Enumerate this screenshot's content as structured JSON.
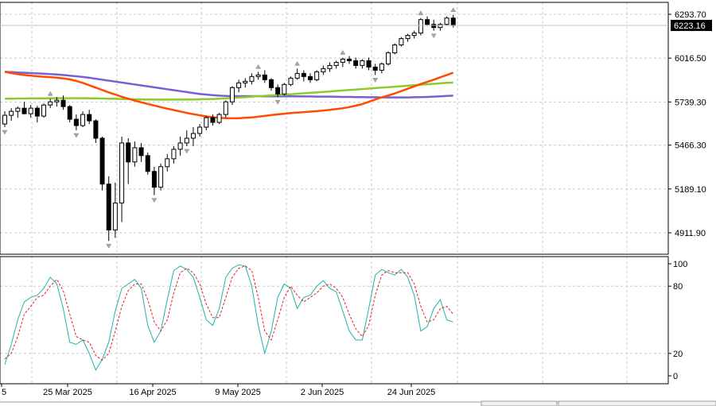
{
  "chart_data": [
    {
      "type": "candlestick",
      "price_scale": {
        "ticks": [
          "6293.70",
          "6016.50",
          "5739.30",
          "5466.30",
          "5189.10",
          "4911.90"
        ],
        "ylim": [
          4830,
          6340
        ]
      },
      "current_price": "6223.16",
      "x_axis": {
        "labels": [
          "5",
          "25 Mar 2025",
          "16 Apr 2025",
          "9 May 2025",
          "2 Jun 2025",
          "24 Jun 2025"
        ]
      },
      "colors": {
        "bull_candle": "#ffffff",
        "bear_candle": "#000000",
        "ma_fast": "#ff4a00",
        "ma_mid": "#8ccc2a",
        "ma_slow": "#7a5fd4",
        "grid": "#c8c8c8",
        "fractal": "#a8a8a8"
      },
      "candles": [
        [
          5600,
          5680,
          5580,
          5655
        ],
        [
          5655,
          5700,
          5620,
          5680
        ],
        [
          5680,
          5710,
          5640,
          5700
        ],
        [
          5700,
          5740,
          5660,
          5665
        ],
        [
          5665,
          5720,
          5640,
          5700
        ],
        [
          5700,
          5715,
          5610,
          5650
        ],
        [
          5650,
          5730,
          5640,
          5720
        ],
        [
          5720,
          5760,
          5700,
          5740
        ],
        [
          5740,
          5770,
          5710,
          5750
        ],
        [
          5750,
          5780,
          5690,
          5710
        ],
        [
          5710,
          5720,
          5610,
          5630
        ],
        [
          5630,
          5660,
          5560,
          5590
        ],
        [
          5590,
          5680,
          5580,
          5660
        ],
        [
          5660,
          5690,
          5600,
          5620
        ],
        [
          5620,
          5630,
          5480,
          5510
        ],
        [
          5510,
          5520,
          5180,
          5220
        ],
        [
          5220,
          5270,
          4860,
          4930
        ],
        [
          4930,
          5230,
          4880,
          5100
        ],
        [
          5100,
          5520,
          4980,
          5480
        ],
        [
          5480,
          5510,
          5220,
          5360
        ],
        [
          5360,
          5490,
          5330,
          5450
        ],
        [
          5450,
          5480,
          5360,
          5400
        ],
        [
          5400,
          5420,
          5280,
          5300
        ],
        [
          5300,
          5330,
          5150,
          5200
        ],
        [
          5200,
          5350,
          5180,
          5330
        ],
        [
          5330,
          5410,
          5300,
          5380
        ],
        [
          5380,
          5460,
          5350,
          5440
        ],
        [
          5440,
          5520,
          5400,
          5480
        ],
        [
          5480,
          5560,
          5460,
          5510
        ],
        [
          5510,
          5580,
          5460,
          5540
        ],
        [
          5540,
          5600,
          5520,
          5580
        ],
        [
          5580,
          5650,
          5560,
          5640
        ],
        [
          5640,
          5660,
          5590,
          5610
        ],
        [
          5610,
          5670,
          5600,
          5660
        ],
        [
          5660,
          5750,
          5640,
          5740
        ],
        [
          5740,
          5840,
          5720,
          5830
        ],
        [
          5830,
          5880,
          5800,
          5860
        ],
        [
          5860,
          5890,
          5830,
          5870
        ],
        [
          5870,
          5920,
          5850,
          5900
        ],
        [
          5900,
          5930,
          5880,
          5910
        ],
        [
          5910,
          5940,
          5860,
          5880
        ],
        [
          5880,
          5890,
          5810,
          5830
        ],
        [
          5830,
          5850,
          5770,
          5790
        ],
        [
          5790,
          5860,
          5780,
          5850
        ],
        [
          5850,
          5900,
          5840,
          5890
        ],
        [
          5890,
          5950,
          5880,
          5920
        ],
        [
          5920,
          5940,
          5870,
          5900
        ],
        [
          5900,
          5920,
          5860,
          5880
        ],
        [
          5880,
          5940,
          5870,
          5930
        ],
        [
          5930,
          5970,
          5910,
          5950
        ],
        [
          5950,
          5990,
          5930,
          5970
        ],
        [
          5970,
          6000,
          5950,
          5990
        ],
        [
          5990,
          6020,
          5960,
          6010
        ],
        [
          6010,
          6030,
          5980,
          6000
        ],
        [
          6000,
          6020,
          5950,
          5970
        ],
        [
          5970,
          6010,
          5950,
          6000
        ],
        [
          6000,
          6020,
          5940,
          5960
        ],
        [
          5960,
          5980,
          5910,
          5940
        ],
        [
          5940,
          5990,
          5920,
          5980
        ],
        [
          5980,
          6060,
          5970,
          6050
        ],
        [
          6050,
          6110,
          6040,
          6100
        ],
        [
          6100,
          6150,
          6090,
          6140
        ],
        [
          6140,
          6170,
          6120,
          6160
        ],
        [
          6160,
          6190,
          6140,
          6175
        ],
        [
          6175,
          6270,
          6160,
          6260
        ],
        [
          6260,
          6280,
          6220,
          6230
        ],
        [
          6230,
          6260,
          6190,
          6210
        ],
        [
          6210,
          6240,
          6190,
          6230
        ],
        [
          6230,
          6280,
          6220,
          6270
        ],
        [
          6270,
          6290,
          6210,
          6223
        ]
      ],
      "moving_averages": {
        "fast": [
          5930,
          5922,
          5915,
          5910,
          5906,
          5902,
          5899,
          5896,
          5893,
          5888,
          5882,
          5872,
          5860,
          5845,
          5830,
          5815,
          5800,
          5786,
          5772,
          5760,
          5748,
          5737,
          5727,
          5717,
          5707,
          5697,
          5688,
          5679,
          5670,
          5662,
          5655,
          5648,
          5643,
          5639,
          5637,
          5636,
          5637,
          5639,
          5642,
          5646,
          5651,
          5656,
          5661,
          5665,
          5669,
          5672,
          5675,
          5678,
          5681,
          5685,
          5689,
          5694,
          5700,
          5707,
          5716,
          5726,
          5740,
          5755,
          5768,
          5780,
          5793,
          5808,
          5823,
          5838,
          5853,
          5866,
          5880,
          5895,
          5910,
          5925
        ],
        "mid": [
          5760,
          5760,
          5761,
          5761,
          5762,
          5762,
          5762,
          5763,
          5763,
          5763,
          5763,
          5763,
          5763,
          5762,
          5762,
          5761,
          5760,
          5759,
          5758,
          5757,
          5756,
          5755,
          5755,
          5754,
          5754,
          5754,
          5754,
          5754,
          5755,
          5755,
          5756,
          5757,
          5758,
          5760,
          5762,
          5765,
          5768,
          5770,
          5773,
          5776,
          5778,
          5781,
          5783,
          5786,
          5788,
          5791,
          5794,
          5797,
          5800,
          5803,
          5806,
          5809,
          5812,
          5815,
          5818,
          5821,
          5824,
          5827,
          5830,
          5833,
          5836,
          5839,
          5842,
          5845,
          5848,
          5851,
          5854,
          5857,
          5860,
          5862
        ],
        "slow": [
          5930,
          5928,
          5926,
          5924,
          5922,
          5920,
          5918,
          5916,
          5913,
          5910,
          5906,
          5902,
          5897,
          5892,
          5886,
          5880,
          5874,
          5868,
          5862,
          5856,
          5850,
          5844,
          5838,
          5832,
          5826,
          5820,
          5814,
          5808,
          5802,
          5796,
          5790,
          5786,
          5782,
          5779,
          5777,
          5776,
          5776,
          5776,
          5776,
          5776,
          5775,
          5775,
          5775,
          5775,
          5775,
          5775,
          5774,
          5774,
          5773,
          5773,
          5773,
          5772,
          5771,
          5771,
          5770,
          5770,
          5769,
          5769,
          5768,
          5768,
          5768,
          5768,
          5768,
          5769,
          5770,
          5771,
          5773,
          5775,
          5777,
          5779
        ]
      },
      "fractals": [
        {
          "bar": 0,
          "dir": "down"
        },
        {
          "bar": 7,
          "dir": "up"
        },
        {
          "bar": 11,
          "dir": "down"
        },
        {
          "bar": 16,
          "dir": "down"
        },
        {
          "bar": 23,
          "dir": "down"
        },
        {
          "bar": 28,
          "dir": "down"
        },
        {
          "bar": 39,
          "dir": "up"
        },
        {
          "bar": 42,
          "dir": "down"
        },
        {
          "bar": 45,
          "dir": "up"
        },
        {
          "bar": 52,
          "dir": "up"
        },
        {
          "bar": 57,
          "dir": "down"
        },
        {
          "bar": 64,
          "dir": "up"
        },
        {
          "bar": 66,
          "dir": "down"
        },
        {
          "bar": 69,
          "dir": "up"
        }
      ]
    },
    {
      "type": "line",
      "title": "",
      "levels": [
        "100",
        "80",
        "20",
        "0"
      ],
      "ylim": [
        0,
        100
      ],
      "series": [
        {
          "color": "#20b2aa",
          "style": "solid",
          "values": [
            10,
            28,
            50,
            66,
            70,
            72,
            78,
            88,
            82,
            60,
            30,
            28,
            32,
            20,
            5,
            15,
            30,
            58,
            78,
            82,
            86,
            78,
            45,
            30,
            40,
            68,
            94,
            98,
            95,
            88,
            70,
            50,
            45,
            60,
            88,
            96,
            99,
            98,
            80,
            45,
            20,
            40,
            70,
            82,
            78,
            60,
            70,
            72,
            80,
            85,
            78,
            75,
            58,
            40,
            32,
            32,
            60,
            90,
            95,
            92,
            90,
            95,
            88,
            72,
            40,
            44,
            60,
            68,
            50,
            48
          ]
        },
        {
          "color": "#e02020",
          "style": "dashed",
          "values": [
            15,
            20,
            35,
            55,
            62,
            70,
            72,
            80,
            86,
            76,
            55,
            35,
            32,
            30,
            18,
            14,
            20,
            40,
            62,
            76,
            82,
            82,
            68,
            48,
            40,
            50,
            74,
            92,
            96,
            92,
            82,
            64,
            52,
            52,
            70,
            88,
            96,
            98,
            94,
            70,
            40,
            32,
            50,
            70,
            80,
            72,
            66,
            70,
            74,
            80,
            82,
            78,
            70,
            55,
            42,
            35,
            45,
            72,
            90,
            94,
            92,
            92,
            92,
            82,
            62,
            48,
            50,
            60,
            62,
            55
          ]
        }
      ]
    }
  ]
}
